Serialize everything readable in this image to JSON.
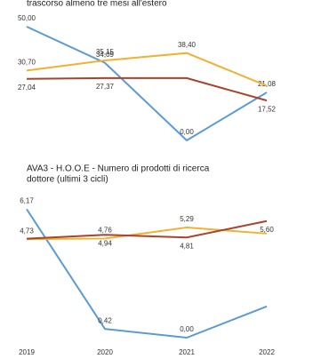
{
  "chart_data": [
    {
      "type": "line",
      "title": [
        "trascorso almeno tre mesi all'estero"
      ],
      "ylim": [
        0,
        50
      ],
      "series": [
        {
          "name": null,
          "color": "#5b9bd5",
          "values": [
            50.0,
            34.09,
            0.0,
            21.08
          ],
          "value_labels": [
            "50,00",
            "34,09",
            "0,00",
            "21,08"
          ]
        },
        {
          "name": null,
          "color": "#f2b134",
          "values": [
            30.7,
            35.15,
            38.4,
            24
          ],
          "value_labels": [
            "30,70",
            "35,15",
            "38,40",
            null
          ]
        },
        {
          "name": null,
          "color": "#a8432c",
          "values": [
            27.04,
            27.37,
            27.37,
            17.52
          ],
          "value_labels": [
            "27,04",
            "27,37",
            null,
            "17,52"
          ]
        }
      ]
    },
    {
      "type": "line",
      "title": [
        "AVA3 - H.O.O.E - Numero di prodotti di ricerca",
        "dottore (ultimi 3 cicli)"
      ],
      "ylim": [
        0,
        6.4
      ],
      "categories": [
        "2019",
        "2020",
        "2021",
        "2022"
      ],
      "series": [
        {
          "name": null,
          "color": "#5b9bd5",
          "values": [
            6.17,
            0.42,
            0.0,
            1.5
          ],
          "value_labels": [
            "6,17",
            "0,42",
            "0,00",
            null
          ]
        },
        {
          "name": null,
          "color": "#f2b134",
          "values": [
            4.73,
            4.76,
            5.29,
            5.0
          ],
          "value_labels": [
            "4,73",
            "4,76",
            "5,29",
            null
          ]
        },
        {
          "name": null,
          "color": "#a8432c",
          "values": [
            4.75,
            4.94,
            4.81,
            5.6
          ],
          "value_labels": [
            null,
            "4,94",
            "4,81",
            "5,60"
          ]
        }
      ]
    }
  ]
}
